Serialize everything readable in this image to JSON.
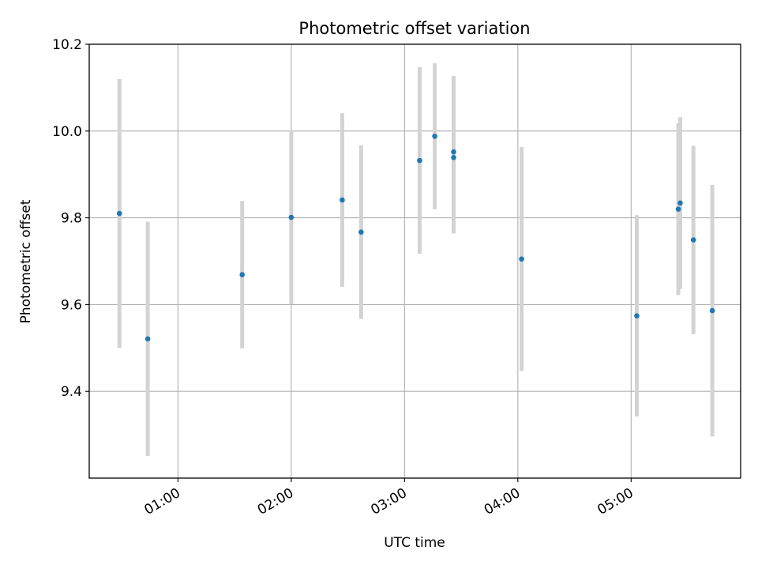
{
  "chart_data": {
    "type": "scatter",
    "title": "Photometric offset variation",
    "xlabel": "UTC time",
    "ylabel": "Photometric offset",
    "xlim": [
      "00:13",
      "05:58"
    ],
    "ylim": [
      9.2,
      10.2
    ],
    "grid": true,
    "x_ticks": [
      "01:00",
      "02:00",
      "03:00",
      "04:00",
      "05:00"
    ],
    "y_ticks": [
      "9.4",
      "9.6",
      "9.8",
      "10.0",
      "10.2"
    ],
    "series": [
      {
        "color": "#1f77b4",
        "errorbar_color": "#d3d3d3",
        "points": [
          {
            "x": "00:29",
            "y": 9.81,
            "err": 0.31
          },
          {
            "x": "00:44",
            "y": 9.521,
            "err": 0.27
          },
          {
            "x": "01:34",
            "y": 9.669,
            "err": 0.17
          },
          {
            "x": "02:00",
            "y": 9.801,
            "err": 0.2
          },
          {
            "x": "02:27",
            "y": 9.841,
            "err": 0.2
          },
          {
            "x": "02:37",
            "y": 9.767,
            "err": 0.2
          },
          {
            "x": "03:08",
            "y": 9.932,
            "err": 0.215
          },
          {
            "x": "03:16",
            "y": 9.988,
            "err": 0.168
          },
          {
            "x": "03:26",
            "y": 9.952,
            "err": 0.175
          },
          {
            "x": "03:26",
            "y": 9.939,
            "err": 0.175
          },
          {
            "x": "04:02",
            "y": 9.705,
            "err": 0.258
          },
          {
            "x": "05:03",
            "y": 9.574,
            "err": 0.232
          },
          {
            "x": "05:25",
            "y": 9.82,
            "err": 0.198
          },
          {
            "x": "05:26",
            "y": 9.834,
            "err": 0.198
          },
          {
            "x": "05:33",
            "y": 9.749,
            "err": 0.217
          },
          {
            "x": "05:43",
            "y": 9.586,
            "err": 0.29
          }
        ]
      }
    ]
  }
}
